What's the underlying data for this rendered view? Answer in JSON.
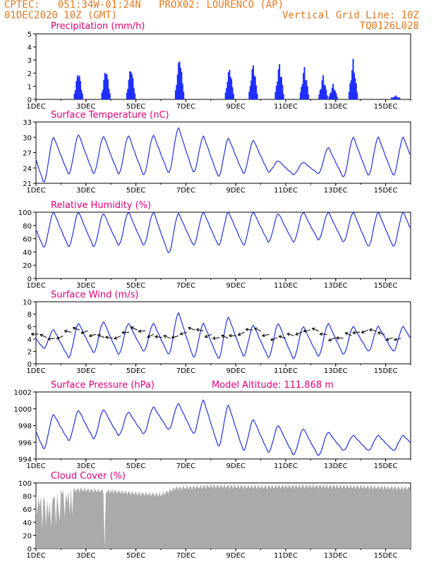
{
  "header": {
    "line1_left": "CPTEC:   051:34W-01:24N   PROX02: LOURENCO (AP)",
    "line2_left": "01DEC2020 10Z (GMT)",
    "line2_right": "Vertical Grid Line: 10Z",
    "line3_right": "TQ0126L028",
    "text_color": "#e07820"
  },
  "colors": {
    "title": "#e0007a",
    "line": "#2233dd",
    "bar": "#1f2fff",
    "cloud": "#aaaaaa"
  },
  "x_ticks": [
    "1DEC",
    "3DEC",
    "5DEC",
    "7DEC",
    "9DEC",
    "11DEC",
    "13DEC",
    "15DEC"
  ],
  "chart_data": [
    {
      "type": "bar",
      "title": "Precipitation (mm/h)",
      "ylim": [
        0,
        5
      ],
      "yticks": [
        "0",
        "1",
        "2",
        "3",
        "4",
        "5"
      ],
      "bursts": [
        {
          "day": 2.7,
          "peak": 2.4
        },
        {
          "day": 3.8,
          "peak": 2.6
        },
        {
          "day": 4.8,
          "peak": 2.7
        },
        {
          "day": 6.75,
          "peak": 3.5
        },
        {
          "day": 8.75,
          "peak": 2.6
        },
        {
          "day": 9.7,
          "peak": 2.9
        },
        {
          "day": 10.75,
          "peak": 2.9
        },
        {
          "day": 11.75,
          "peak": 2.6
        },
        {
          "day": 12.5,
          "peak": 1.9
        },
        {
          "day": 12.9,
          "peak": 1.2
        },
        {
          "day": 13.7,
          "peak": 3.1
        },
        {
          "day": 15.4,
          "peak": 0.3
        }
      ]
    },
    {
      "type": "line",
      "title": "Surface Temperature (nC)",
      "ylim": [
        21,
        33
      ],
      "yticks": [
        "21",
        "24",
        "27",
        "30",
        "33"
      ],
      "maxima": [
        30.0,
        30.5,
        30.2,
        30.3,
        30.4,
        31.8,
        30.2,
        29.8,
        29.4,
        25.4,
        25.1,
        28.0,
        30.0
      ],
      "minima": [
        21.2,
        22.8,
        22.9,
        22.8,
        22.6,
        23.0,
        23.1,
        22.3,
        22.9,
        23.2,
        22.7,
        22.9,
        22.2,
        22.5
      ]
    },
    {
      "type": "line",
      "title": "Relative Humidity (%)",
      "ylim": [
        0,
        100
      ],
      "yticks": [
        "0",
        "20",
        "40",
        "60",
        "80",
        "100"
      ],
      "maxima": [
        100,
        100,
        98,
        100,
        100,
        98,
        100,
        100,
        100,
        98,
        100,
        100,
        100,
        100
      ],
      "minima": [
        47,
        48,
        48,
        50,
        50,
        38,
        50,
        50,
        50,
        55,
        55,
        58,
        55,
        48
      ]
    },
    {
      "type": "line",
      "title": "Surface Wind (m/s)",
      "ylim": [
        0,
        10
      ],
      "yticks": [
        "0",
        "2",
        "4",
        "6",
        "8",
        "10"
      ],
      "maxima": [
        5.5,
        6.5,
        6.8,
        6.5,
        6.5,
        8.2,
        6.5,
        7.5,
        6.2,
        6.5,
        6.0,
        6.5,
        6.0
      ],
      "minima": [
        2.5,
        1.0,
        1.8,
        1.5,
        2.0,
        1.5,
        1.0,
        0.8,
        1.2,
        1.0,
        0.8,
        1.2,
        1.5,
        2.0
      ]
    },
    {
      "type": "line",
      "title": "Surface Pressure (hPa)",
      "annotation": "Model Altitude: 111.868 m",
      "ylim": [
        994,
        1002
      ],
      "yticks": [
        "994",
        "996",
        "998",
        "1000",
        "1002"
      ],
      "maxima": [
        999.3,
        999.8,
        999.9,
        999.6,
        1000.2,
        1000.6,
        1001.0,
        1000.4,
        998.7,
        998.0,
        997.6,
        997.2,
        996.8
      ],
      "minima": [
        995.2,
        996.2,
        996.4,
        996.8,
        997.0,
        997.5,
        997.0,
        995.5,
        995.0,
        994.8,
        994.5,
        994.4,
        995.0
      ]
    },
    {
      "type": "area",
      "title": "Cloud Cover (%)",
      "ylim": [
        0,
        100
      ],
      "yticks": [
        "0",
        "20",
        "40",
        "60",
        "80",
        "100"
      ],
      "levels": [
        {
          "day": 1.0,
          "value": 85
        },
        {
          "day": 1.5,
          "value": 70
        },
        {
          "day": 2.0,
          "value": 88
        },
        {
          "day": 2.8,
          "value": 90
        },
        {
          "day": 3.5,
          "value": 88
        },
        {
          "day": 4.2,
          "value": 87
        },
        {
          "day": 5.0,
          "value": 84
        },
        {
          "day": 6.0,
          "value": 82
        },
        {
          "day": 6.6,
          "value": 92
        },
        {
          "day": 8.0,
          "value": 95
        },
        {
          "day": 10.0,
          "value": 94
        },
        {
          "day": 12.0,
          "value": 95
        },
        {
          "day": 14.0,
          "value": 94
        },
        {
          "day": 16.0,
          "value": 92
        }
      ]
    }
  ]
}
